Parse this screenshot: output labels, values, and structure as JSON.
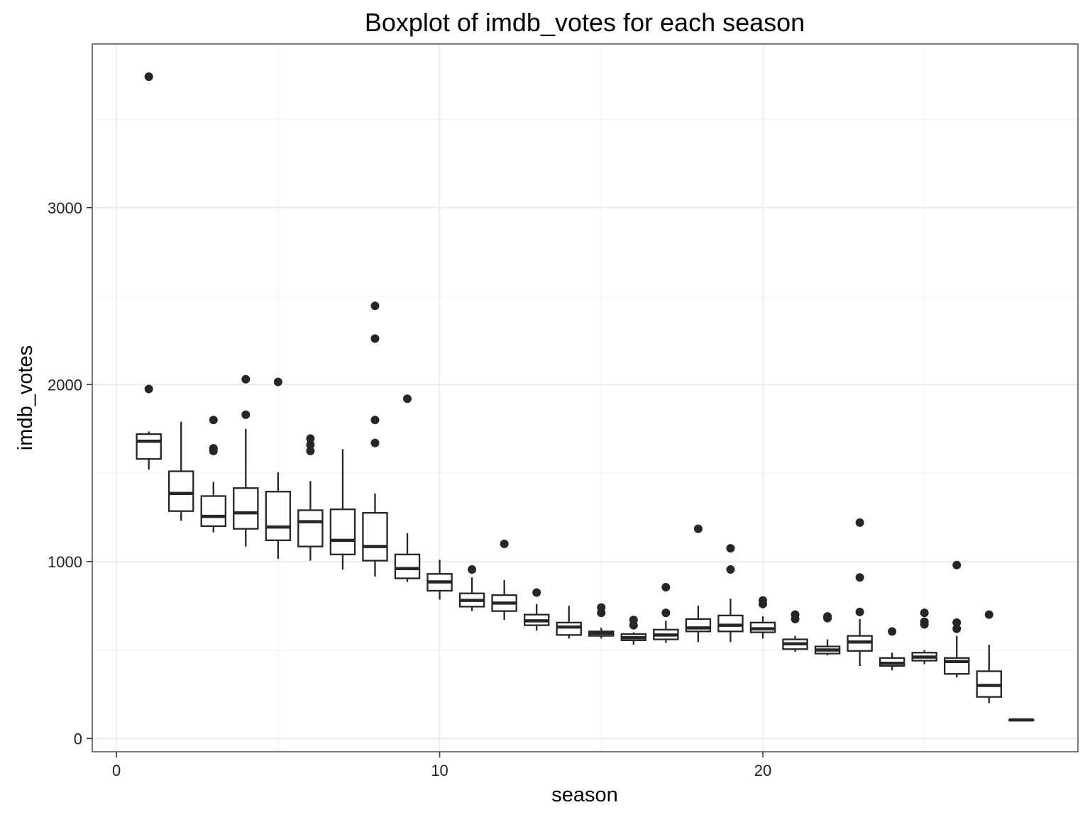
{
  "chart_data": {
    "type": "boxplot",
    "title": "Boxplot of imdb_votes for each season",
    "xlabel": "season",
    "ylabel": "imdb_votes",
    "xlim": [
      -0.75,
      29.75
    ],
    "ylim": [
      -75,
      3925
    ],
    "x_ticks": [
      0,
      10,
      20
    ],
    "y_ticks": [
      0,
      1000,
      2000,
      3000
    ],
    "grid": true,
    "colors": {
      "box_stroke": "#262626",
      "box_fill": "#ffffff",
      "panel_border": "#4d4d4d",
      "grid": "#e6e6e6"
    },
    "seasons": [
      {
        "season": 1,
        "min": 1520,
        "q1": 1580,
        "median": 1680,
        "q3": 1720,
        "max": 1735,
        "outliers": [
          3740,
          1975
        ]
      },
      {
        "season": 2,
        "min": 1230,
        "q1": 1285,
        "median": 1385,
        "q3": 1510,
        "max": 1790,
        "outliers": []
      },
      {
        "season": 3,
        "min": 1165,
        "q1": 1200,
        "median": 1255,
        "q3": 1370,
        "max": 1450,
        "outliers": [
          1800,
          1640,
          1625
        ]
      },
      {
        "season": 4,
        "min": 1085,
        "q1": 1185,
        "median": 1275,
        "q3": 1415,
        "max": 1750,
        "outliers": [
          2030,
          1830
        ]
      },
      {
        "season": 5,
        "min": 1015,
        "q1": 1120,
        "median": 1195,
        "q3": 1395,
        "max": 1505,
        "outliers": [
          2015
        ]
      },
      {
        "season": 6,
        "min": 1005,
        "q1": 1085,
        "median": 1225,
        "q3": 1290,
        "max": 1455,
        "outliers": [
          1695,
          1660,
          1625
        ]
      },
      {
        "season": 7,
        "min": 955,
        "q1": 1040,
        "median": 1120,
        "q3": 1295,
        "max": 1635,
        "outliers": []
      },
      {
        "season": 8,
        "min": 915,
        "q1": 1005,
        "median": 1085,
        "q3": 1275,
        "max": 1385,
        "outliers": [
          2445,
          2260,
          1800,
          1670
        ]
      },
      {
        "season": 9,
        "min": 885,
        "q1": 905,
        "median": 960,
        "q3": 1040,
        "max": 1160,
        "outliers": [
          1920
        ]
      },
      {
        "season": 10,
        "min": 785,
        "q1": 835,
        "median": 885,
        "q3": 930,
        "max": 1010,
        "outliers": []
      },
      {
        "season": 11,
        "min": 720,
        "q1": 745,
        "median": 780,
        "q3": 820,
        "max": 910,
        "outliers": [
          955
        ]
      },
      {
        "season": 12,
        "min": 670,
        "q1": 720,
        "median": 765,
        "q3": 810,
        "max": 895,
        "outliers": [
          1100
        ]
      },
      {
        "season": 13,
        "min": 610,
        "q1": 640,
        "median": 665,
        "q3": 700,
        "max": 760,
        "outliers": [
          825
        ]
      },
      {
        "season": 14,
        "min": 565,
        "q1": 585,
        "median": 630,
        "q3": 655,
        "max": 750,
        "outliers": []
      },
      {
        "season": 15,
        "min": 565,
        "q1": 580,
        "median": 595,
        "q3": 605,
        "max": 625,
        "outliers": [
          740,
          710
        ]
      },
      {
        "season": 16,
        "min": 530,
        "q1": 555,
        "median": 570,
        "q3": 590,
        "max": 600,
        "outliers": [
          670,
          640
        ]
      },
      {
        "season": 17,
        "min": 540,
        "q1": 560,
        "median": 585,
        "q3": 615,
        "max": 665,
        "outliers": [
          855,
          710
        ]
      },
      {
        "season": 18,
        "min": 545,
        "q1": 605,
        "median": 625,
        "q3": 675,
        "max": 750,
        "outliers": [
          1185
        ]
      },
      {
        "season": 19,
        "min": 545,
        "q1": 605,
        "median": 640,
        "q3": 695,
        "max": 790,
        "outliers": [
          1075,
          955
        ]
      },
      {
        "season": 20,
        "min": 565,
        "q1": 600,
        "median": 620,
        "q3": 655,
        "max": 690,
        "outliers": [
          780,
          760
        ]
      },
      {
        "season": 21,
        "min": 490,
        "q1": 505,
        "median": 535,
        "q3": 560,
        "max": 580,
        "outliers": [
          700,
          675
        ]
      },
      {
        "season": 22,
        "min": 470,
        "q1": 480,
        "median": 500,
        "q3": 520,
        "max": 560,
        "outliers": [
          690,
          680
        ]
      },
      {
        "season": 23,
        "min": 410,
        "q1": 495,
        "median": 545,
        "q3": 580,
        "max": 675,
        "outliers": [
          1220,
          910,
          715
        ]
      },
      {
        "season": 24,
        "min": 385,
        "q1": 410,
        "median": 425,
        "q3": 455,
        "max": 485,
        "outliers": [
          605
        ]
      },
      {
        "season": 25,
        "min": 420,
        "q1": 440,
        "median": 460,
        "q3": 485,
        "max": 500,
        "outliers": [
          710,
          660,
          645
        ]
      },
      {
        "season": 26,
        "min": 345,
        "q1": 365,
        "median": 435,
        "q3": 455,
        "max": 580,
        "outliers": [
          980,
          655,
          620
        ]
      },
      {
        "season": 27,
        "min": 200,
        "q1": 235,
        "median": 300,
        "q3": 380,
        "max": 530,
        "outliers": [
          700
        ]
      },
      {
        "season": 28,
        "min": 105,
        "q1": 105,
        "median": 105,
        "q3": 105,
        "max": 105,
        "outliers": []
      }
    ]
  }
}
